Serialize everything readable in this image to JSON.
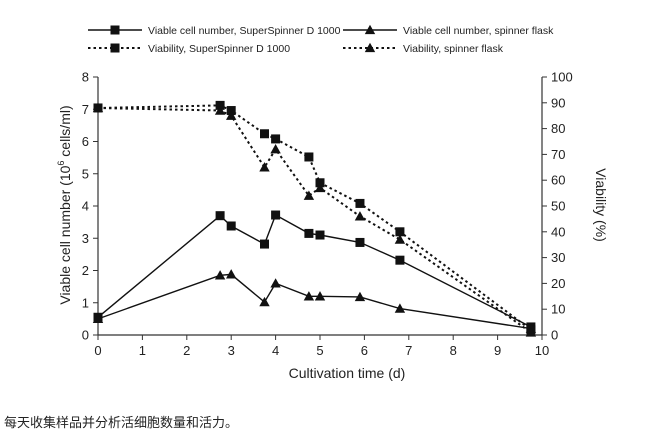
{
  "chart_data": {
    "type": "line",
    "x": [
      0,
      2.75,
      3,
      3.75,
      4,
      4.75,
      5,
      5.9,
      6.8,
      9.75
    ],
    "xlabel": "Cultivation time (d)",
    "xlim": [
      0,
      10
    ],
    "xticks": [
      "0",
      "1",
      "2",
      "3",
      "4",
      "5",
      "6",
      "7",
      "8",
      "9",
      "10"
    ],
    "ylabel_left_prefix": "Viable cell number (10",
    "ylabel_left_sup": "6",
    "ylabel_left_suffix": " cells/ml)",
    "ylim_left": [
      0,
      8
    ],
    "yticks_left": [
      "0",
      "1",
      "2",
      "3",
      "4",
      "5",
      "6",
      "7",
      "8"
    ],
    "ylabel_right": "Viability (%)",
    "ylim_right": [
      0,
      100
    ],
    "yticks_right": [
      "0",
      "10",
      "20",
      "30",
      "40",
      "50",
      "60",
      "70",
      "80",
      "90",
      "100"
    ],
    "legend_position": "top",
    "series": [
      {
        "name": "Viable cell number, SuperSpinner D 1000",
        "axis": "left",
        "marker": "square",
        "style": "solid",
        "x": [
          0,
          2.75,
          3,
          3.75,
          4,
          4.75,
          5,
          5.9,
          6.8,
          9.75
        ],
        "values": [
          0.55,
          3.7,
          3.38,
          2.82,
          3.72,
          3.15,
          3.1,
          2.87,
          2.32,
          0.25
        ]
      },
      {
        "name": "Viable cell number, spinner flask",
        "axis": "left",
        "marker": "triangle",
        "style": "solid",
        "x": [
          0,
          2.75,
          3,
          3.75,
          4,
          4.75,
          5,
          5.9,
          6.8,
          9.75
        ],
        "values": [
          0.5,
          1.85,
          1.88,
          1.02,
          1.6,
          1.2,
          1.2,
          1.18,
          0.82,
          0.2
        ]
      },
      {
        "name": "Viability, SuperSpinner D 1000",
        "axis": "right",
        "marker": "square",
        "style": "dotted",
        "x": [
          0,
          2.75,
          3,
          3.75,
          4,
          4.75,
          5,
          5.9,
          6.8,
          9.75
        ],
        "values": [
          88,
          89,
          87,
          78,
          76,
          69,
          59,
          51,
          40,
          2
        ]
      },
      {
        "name": "Viability, spinner flask",
        "axis": "right",
        "marker": "triangle",
        "style": "dotted",
        "x": [
          0,
          2.75,
          3,
          3.75,
          4,
          4.75,
          5,
          5.9,
          6.8,
          9.75
        ],
        "values": [
          88,
          87,
          85,
          65,
          72,
          54,
          57,
          46,
          37,
          1
        ]
      }
    ],
    "colors": {
      "line": "#111111",
      "axis": "#333333",
      "text": "#222222"
    }
  },
  "caption": "每天收集样品并分析活细胞数量和活力。"
}
